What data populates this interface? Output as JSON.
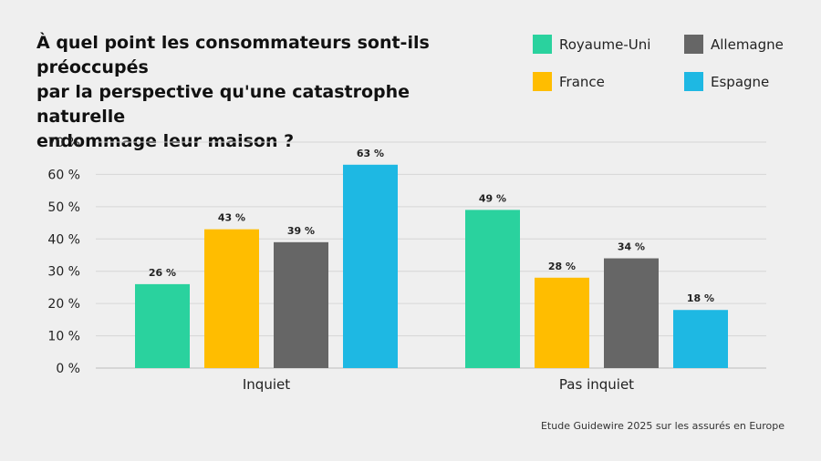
{
  "chart_data": {
    "type": "bar",
    "title_lines": [
      "À quel point les consommateurs sont-ils préoccupés",
      "par la perspective qu'une catastrophe naturelle",
      "endommage leur maison ?"
    ],
    "categories": [
      "Inquiet",
      "Pas inquiet"
    ],
    "series": [
      {
        "name": "Royaume-Uni",
        "color": "#2ad29e",
        "values": [
          26,
          49
        ]
      },
      {
        "name": "France",
        "color": "#ffbd00",
        "values": [
          43,
          28
        ]
      },
      {
        "name": "Allemagne",
        "color": "#666666",
        "values": [
          39,
          34
        ]
      },
      {
        "name": "Espagne",
        "color": "#1eb8e3",
        "values": [
          63,
          18
        ]
      }
    ],
    "ylim": [
      0,
      70
    ],
    "yticks": [
      "0 %",
      "10 %",
      "20 %",
      "30 %",
      "40 %",
      "50 %",
      "60 %",
      "70 %"
    ],
    "value_suffix": " %",
    "grid": true,
    "legend_position": "top-right"
  },
  "source": "Etude Guidewire 2025 sur les assurés en Europe"
}
